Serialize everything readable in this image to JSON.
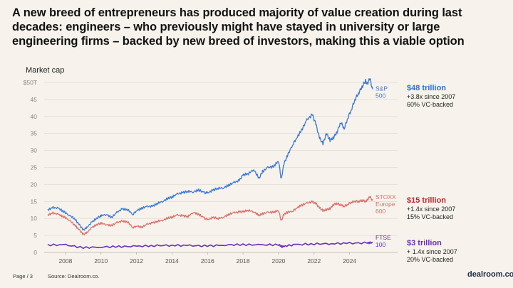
{
  "title": "A new breed of entrepreneurs has produced majority of value creation during last decades: engineers – who previously might have stayed in university or large engineering firms – backed by new breed of investors, making this a viable option",
  "footer": {
    "page": "Page / 3",
    "source": "Source: Dealroom.co.",
    "logo": "dealroom.co"
  },
  "annotations": [
    {
      "value": "$48 trillion",
      "line1": "+3.8x since 2007",
      "line2": "60% VC-backed",
      "color": "#2f6fd8"
    },
    {
      "value": "$15 trillion",
      "line1": "+1.4x since 2007",
      "line2": "15% VC-backed",
      "color": "#c0282d"
    },
    {
      "value": "$3 trillion",
      "line1": "+ 1.4x since 2007",
      "line2": "20% VC-backed",
      "color": "#6a2fb8"
    }
  ],
  "chart_data": {
    "type": "line",
    "title": "",
    "ylabel": "Market cap",
    "xlabel": "",
    "ylim": [
      0,
      50
    ],
    "xlim": [
      2006.8,
      2025.5
    ],
    "yticks": [
      "0",
      "5",
      "10",
      "15",
      "20",
      "25",
      "30",
      "35",
      "40",
      "45",
      "$50T"
    ],
    "ytick_values": [
      0,
      5,
      10,
      15,
      20,
      25,
      30,
      35,
      40,
      45,
      50
    ],
    "xticks": [
      "2008",
      "2010",
      "2012",
      "2014",
      "2016",
      "2018",
      "2020",
      "2022",
      "2024"
    ],
    "xtick_values": [
      2008,
      2010,
      2012,
      2014,
      2016,
      2018,
      2020,
      2022,
      2024
    ],
    "grid": true,
    "series": [
      {
        "name": "S&P 500",
        "label_lines": [
          "S&P",
          "500"
        ],
        "color": "#3b78d8",
        "x": [
          2007.0,
          2007.3,
          2007.6,
          2007.9,
          2008.2,
          2008.5,
          2008.8,
          2009.0,
          2009.2,
          2009.5,
          2009.8,
          2010.0,
          2010.3,
          2010.6,
          2010.9,
          2011.2,
          2011.5,
          2011.8,
          2012.0,
          2012.3,
          2012.6,
          2012.9,
          2013.2,
          2013.5,
          2013.8,
          2014.0,
          2014.3,
          2014.6,
          2014.9,
          2015.2,
          2015.5,
          2015.8,
          2016.0,
          2016.3,
          2016.6,
          2016.9,
          2017.2,
          2017.5,
          2017.8,
          2018.0,
          2018.3,
          2018.6,
          2018.9,
          2019.1,
          2019.4,
          2019.7,
          2020.0,
          2020.15,
          2020.3,
          2020.5,
          2020.8,
          2021.0,
          2021.3,
          2021.6,
          2021.9,
          2022.1,
          2022.3,
          2022.5,
          2022.7,
          2022.9,
          2023.1,
          2023.3,
          2023.5,
          2023.7,
          2023.9,
          2024.1,
          2024.3,
          2024.5,
          2024.7,
          2024.9,
          2025.0,
          2025.15,
          2025.3
        ],
        "values": [
          12.5,
          13.2,
          13.0,
          12.0,
          11.0,
          10.0,
          8.0,
          6.6,
          7.3,
          9.0,
          10.2,
          10.8,
          11.2,
          10.3,
          11.8,
          12.8,
          12.6,
          11.2,
          12.3,
          13.0,
          13.5,
          13.6,
          14.5,
          15.1,
          16.0,
          16.3,
          17.2,
          17.6,
          18.0,
          17.8,
          18.4,
          17.6,
          17.5,
          18.3,
          18.9,
          19.0,
          19.8,
          20.6,
          21.2,
          22.8,
          23.2,
          24.4,
          21.8,
          23.8,
          25.0,
          25.2,
          27.0,
          21.5,
          26.0,
          28.5,
          31.8,
          33.5,
          36.0,
          39.0,
          40.5,
          37.8,
          33.8,
          32.0,
          35.0,
          33.0,
          33.8,
          35.5,
          38.3,
          36.5,
          39.6,
          42.0,
          45.0,
          46.8,
          48.7,
          50.5,
          49.8,
          51.0,
          48.0
        ]
      },
      {
        "name": "STOXX Europe 600",
        "label_lines": [
          "STOXX",
          "Europe",
          "600"
        ],
        "color": "#d9706c",
        "x": [
          2007.0,
          2007.3,
          2007.6,
          2007.9,
          2008.2,
          2008.5,
          2008.8,
          2009.0,
          2009.2,
          2009.5,
          2009.8,
          2010.0,
          2010.3,
          2010.6,
          2010.9,
          2011.2,
          2011.5,
          2011.8,
          2012.0,
          2012.3,
          2012.6,
          2012.9,
          2013.2,
          2013.5,
          2013.8,
          2014.0,
          2014.3,
          2014.6,
          2014.9,
          2015.2,
          2015.5,
          2015.8,
          2016.0,
          2016.3,
          2016.6,
          2016.9,
          2017.2,
          2017.5,
          2017.8,
          2018.0,
          2018.3,
          2018.6,
          2018.9,
          2019.1,
          2019.4,
          2019.7,
          2020.0,
          2020.15,
          2020.3,
          2020.5,
          2020.8,
          2021.0,
          2021.3,
          2021.6,
          2021.9,
          2022.1,
          2022.3,
          2022.5,
          2022.7,
          2022.9,
          2023.1,
          2023.3,
          2023.5,
          2023.7,
          2023.9,
          2024.1,
          2024.3,
          2024.5,
          2024.7,
          2024.9,
          2025.0,
          2025.15,
          2025.3
        ],
        "values": [
          11.0,
          11.6,
          11.2,
          10.5,
          9.6,
          8.2,
          6.5,
          5.3,
          5.8,
          7.4,
          8.3,
          8.6,
          8.2,
          7.9,
          8.8,
          9.2,
          9.0,
          7.3,
          7.8,
          7.4,
          8.3,
          8.7,
          9.2,
          9.5,
          10.2,
          10.4,
          11.0,
          10.8,
          10.6,
          11.8,
          11.2,
          10.2,
          9.6,
          10.3,
          10.0,
          10.4,
          11.2,
          11.7,
          11.9,
          12.0,
          12.4,
          12.0,
          10.9,
          11.4,
          11.8,
          11.8,
          12.4,
          9.3,
          11.2,
          11.8,
          12.2,
          13.0,
          13.9,
          14.5,
          14.9,
          14.4,
          13.2,
          12.3,
          12.6,
          12.9,
          14.1,
          14.4,
          14.0,
          13.6,
          14.2,
          14.8,
          15.1,
          15.0,
          15.3,
          15.0,
          15.6,
          16.3,
          15.3
        ]
      },
      {
        "name": "FTSE 100",
        "label_lines": [
          "FTSE",
          "100"
        ],
        "color": "#6a2fb8",
        "x": [
          2007.0,
          2008.0,
          2009.0,
          2010.0,
          2011.0,
          2012.0,
          2013.0,
          2014.0,
          2015.0,
          2016.0,
          2017.0,
          2018.0,
          2019.0,
          2020.0,
          2020.2,
          2020.5,
          2021.0,
          2022.0,
          2023.0,
          2024.0,
          2025.0,
          2025.3
        ],
        "values": [
          2.2,
          2.2,
          1.4,
          1.6,
          1.7,
          1.8,
          2.0,
          2.1,
          2.0,
          1.9,
          2.2,
          2.3,
          2.2,
          2.3,
          1.7,
          2.0,
          2.3,
          2.5,
          2.6,
          2.7,
          2.8,
          2.9
        ]
      }
    ]
  }
}
